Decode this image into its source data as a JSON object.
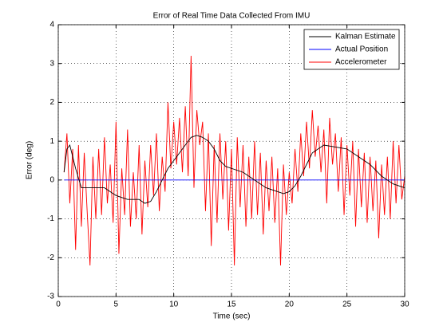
{
  "chart_data": {
    "type": "line",
    "title": "Error of Real Time Data Collected From IMU",
    "xlabel": "Time (sec)",
    "ylabel": "Error (deg)",
    "xlim": [
      0,
      30
    ],
    "ylim": [
      -3,
      4
    ],
    "xticks": [
      0,
      5,
      10,
      15,
      20,
      25,
      30
    ],
    "yticks": [
      -3,
      -2,
      -1,
      0,
      1,
      2,
      3,
      4
    ],
    "grid": true,
    "legend": "upper right",
    "series": [
      {
        "name": "Kalman Estimate",
        "color": "#000000",
        "x": [
          0.5,
          0.75,
          1,
          1.5,
          2,
          3,
          4,
          5,
          6,
          7,
          7.5,
          8,
          8.5,
          9,
          9.5,
          10,
          10.5,
          11,
          11.5,
          12,
          12.5,
          13,
          13.5,
          14,
          14.5,
          15,
          16,
          17,
          18,
          19,
          19.5,
          20,
          20.5,
          21,
          21.5,
          22,
          22.5,
          23,
          24,
          25,
          26,
          27,
          28,
          29,
          30
        ],
        "values": [
          0.2,
          0.8,
          0.9,
          0.3,
          -0.2,
          -0.2,
          -0.2,
          -0.4,
          -0.5,
          -0.5,
          -0.6,
          -0.55,
          -0.3,
          0.0,
          0.3,
          0.5,
          0.7,
          0.9,
          1.1,
          1.15,
          1.1,
          1.0,
          0.8,
          0.5,
          0.35,
          0.3,
          0.2,
          0.0,
          -0.2,
          -0.3,
          -0.35,
          -0.3,
          -0.15,
          0.1,
          0.4,
          0.7,
          0.8,
          0.9,
          0.85,
          0.8,
          0.6,
          0.4,
          0.1,
          -0.1,
          -0.2
        ]
      },
      {
        "name": "Actual Position",
        "color": "#0000ff",
        "x": [
          0.5,
          30
        ],
        "values": [
          0,
          0
        ]
      },
      {
        "name": "Accelerometer",
        "color": "#ff0000",
        "x": [
          0.5,
          0.75,
          1,
          1.25,
          1.5,
          1.75,
          2,
          2.25,
          2.5,
          2.75,
          3,
          3.25,
          3.5,
          3.75,
          4,
          4.25,
          4.5,
          4.75,
          5,
          5.25,
          5.5,
          5.75,
          6,
          6.25,
          6.5,
          6.75,
          7,
          7.25,
          7.5,
          7.75,
          8,
          8.25,
          8.5,
          8.75,
          9,
          9.25,
          9.5,
          9.75,
          10,
          10.25,
          10.5,
          10.75,
          11,
          11.25,
          11.5,
          11.75,
          12,
          12.25,
          12.5,
          12.75,
          13,
          13.25,
          13.5,
          13.75,
          14,
          14.25,
          14.5,
          14.75,
          15,
          15.25,
          15.5,
          15.75,
          16,
          16.25,
          16.5,
          16.75,
          17,
          17.25,
          17.5,
          17.75,
          18,
          18.25,
          18.5,
          18.75,
          19,
          19.25,
          19.5,
          19.75,
          20,
          20.25,
          20.5,
          20.75,
          21,
          21.25,
          21.5,
          21.75,
          22,
          22.25,
          22.5,
          22.75,
          23,
          23.25,
          23.5,
          23.75,
          24,
          24.25,
          24.5,
          24.75,
          25,
          25.25,
          25.5,
          25.75,
          26,
          26.25,
          26.5,
          26.75,
          27,
          27.25,
          27.5,
          27.75,
          28,
          28.25,
          28.5,
          28.75,
          29,
          29.25,
          29.5,
          29.75,
          30
        ],
        "values": [
          0.2,
          1.2,
          -0.6,
          0.8,
          -1.8,
          0.9,
          -1.2,
          0.7,
          -0.8,
          -2.2,
          0.6,
          -1.0,
          0.8,
          -0.9,
          1.1,
          -0.6,
          0.4,
          -1.1,
          1.5,
          -1.9,
          0.3,
          -0.9,
          1.3,
          -1.2,
          0.2,
          -1.0,
          0.9,
          -1.4,
          0.5,
          -0.7,
          0.9,
          -0.4,
          1.2,
          -0.8,
          0.6,
          -0.3,
          2.0,
          0.3,
          1.5,
          0.4,
          1.6,
          0.2,
          1.9,
          0.1,
          3.2,
          -0.2,
          1.8,
          0.9,
          1.5,
          -0.8,
          1.2,
          -1.7,
          0.9,
          -1.1,
          1.2,
          -0.5,
          1.0,
          -1.3,
          0.8,
          -2.2,
          1.1,
          -0.7,
          0.9,
          -1.2,
          0.6,
          -1.0,
          1.0,
          -0.9,
          0.7,
          -1.4,
          0.5,
          -0.8,
          0.6,
          -1.1,
          0.3,
          -2.2,
          0.4,
          -0.9,
          0.2,
          -0.6,
          0.8,
          -0.3,
          1.2,
          0.1,
          1.5,
          0.3,
          1.8,
          0.6,
          1.4,
          0.2,
          1.3,
          -0.6,
          1.6,
          0.4,
          1.2,
          -0.3,
          1.1,
          -0.9,
          0.9,
          -0.4,
          1.0,
          -1.2,
          0.8,
          -0.7,
          0.7,
          -1.1,
          0.6,
          -0.8,
          0.5,
          -1.5,
          0.4,
          -0.9,
          0.6,
          -1.0,
          1.0,
          -0.6,
          0.9,
          -0.5,
          0.1
        ]
      }
    ]
  }
}
